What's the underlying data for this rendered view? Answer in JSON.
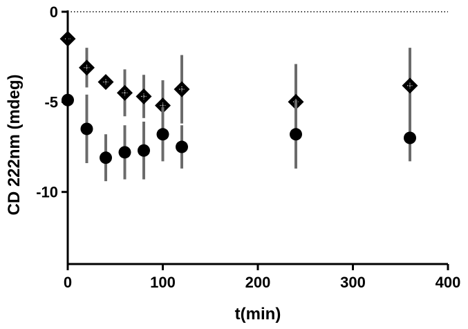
{
  "chart_data": {
    "type": "scatter",
    "title": "",
    "xlabel": "t(min)",
    "ylabel": "CD 222nm (mdeg)",
    "xlim": [
      0,
      400
    ],
    "ylim": [
      -14,
      0
    ],
    "x_ticks": [
      0,
      100,
      200,
      300,
      400
    ],
    "x_tick_labels": [
      "0",
      "100",
      "200",
      "300",
      "400"
    ],
    "y_ticks": [
      0,
      -5,
      -10
    ],
    "y_tick_labels": [
      "0",
      "-5",
      "-10"
    ],
    "reference_line": {
      "y": 0,
      "style": "dotted"
    },
    "grid": false,
    "series": [
      {
        "marker": "diamond",
        "points": [
          {
            "x": 0,
            "y": -1.5,
            "err": 0
          },
          {
            "x": 20,
            "y": -3.1,
            "err": 1.1
          },
          {
            "x": 40,
            "y": -3.9,
            "err": 0
          },
          {
            "x": 60,
            "y": -4.5,
            "err": 1.3
          },
          {
            "x": 80,
            "y": -4.7,
            "err": 1.2
          },
          {
            "x": 100,
            "y": -5.2,
            "err": 1.4
          },
          {
            "x": 120,
            "y": -4.3,
            "err": 1.9
          },
          {
            "x": 240,
            "y": -5.0,
            "err": 2.1
          },
          {
            "x": 360,
            "y": -4.1,
            "err": 2.1
          }
        ]
      },
      {
        "marker": "circle",
        "points": [
          {
            "x": 0,
            "y": -4.9,
            "err": 0
          },
          {
            "x": 20,
            "y": -6.5,
            "err": 1.9
          },
          {
            "x": 40,
            "y": -8.1,
            "err": 1.3
          },
          {
            "x": 60,
            "y": -7.8,
            "err": 1.5
          },
          {
            "x": 80,
            "y": -7.7,
            "err": 1.6
          },
          {
            "x": 100,
            "y": -6.8,
            "err": 1.5
          },
          {
            "x": 120,
            "y": -7.5,
            "err": 1.2
          },
          {
            "x": 240,
            "y": -6.8,
            "err": 1.9
          },
          {
            "x": 360,
            "y": -7.0,
            "err": 1.3
          }
        ]
      }
    ]
  }
}
